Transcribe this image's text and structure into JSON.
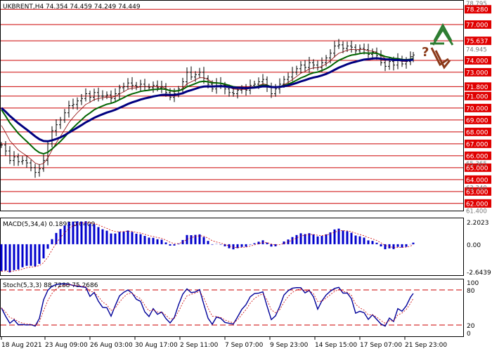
{
  "chart_data": {
    "type": "candlestick",
    "header": "UKBRENT,H4  74.354 74.459 74.249 74.449",
    "price_panel": {
      "ylim": [
        61.4,
        79.0
      ],
      "resistance_levels": [
        78.28,
        77.0,
        75.637,
        74.0,
        73.0,
        71.8,
        71.0,
        70.0,
        69.0,
        68.0,
        67.0,
        66.0,
        65.0,
        64.0,
        63.0,
        62.0
      ],
      "red_labels": [
        "78.280",
        "77.000",
        "75.637",
        "74.000",
        "73.000",
        "71.800",
        "71.000",
        "70.000",
        "69.000",
        "68.000",
        "67.000",
        "66.000",
        "65.000",
        "64.000",
        "63.000",
        "62.000"
      ],
      "gray_labels": [
        "78.795",
        "74.945",
        "65.365",
        "63.340",
        "61.400"
      ],
      "close_series": [
        {
          "x": 0,
          "y": 66.9
        },
        {
          "x": 6,
          "y": 66.4
        },
        {
          "x": 12,
          "y": 65.6
        },
        {
          "x": 18,
          "y": 65.9
        },
        {
          "x": 24,
          "y": 65.5
        },
        {
          "x": 30,
          "y": 65.6
        },
        {
          "x": 36,
          "y": 65.4
        },
        {
          "x": 42,
          "y": 65.0
        },
        {
          "x": 48,
          "y": 64.6
        },
        {
          "x": 54,
          "y": 64.9
        },
        {
          "x": 60,
          "y": 65.6
        },
        {
          "x": 66,
          "y": 67.0
        },
        {
          "x": 72,
          "y": 68.1
        },
        {
          "x": 78,
          "y": 68.6
        },
        {
          "x": 84,
          "y": 69.0
        },
        {
          "x": 90,
          "y": 69.6
        },
        {
          "x": 96,
          "y": 70.2
        },
        {
          "x": 102,
          "y": 70.3
        },
        {
          "x": 108,
          "y": 70.6
        },
        {
          "x": 114,
          "y": 70.8
        },
        {
          "x": 120,
          "y": 71.2
        },
        {
          "x": 126,
          "y": 70.9
        },
        {
          "x": 132,
          "y": 71.3
        },
        {
          "x": 138,
          "y": 71.0
        },
        {
          "x": 144,
          "y": 71.0
        },
        {
          "x": 150,
          "y": 71.1
        },
        {
          "x": 156,
          "y": 70.8
        },
        {
          "x": 162,
          "y": 71.2
        },
        {
          "x": 168,
          "y": 71.7
        },
        {
          "x": 174,
          "y": 71.8
        },
        {
          "x": 180,
          "y": 72.1
        },
        {
          "x": 186,
          "y": 71.9
        },
        {
          "x": 192,
          "y": 71.8
        },
        {
          "x": 198,
          "y": 72.0
        },
        {
          "x": 204,
          "y": 71.8
        },
        {
          "x": 210,
          "y": 71.7
        },
        {
          "x": 216,
          "y": 71.9
        },
        {
          "x": 222,
          "y": 71.7
        },
        {
          "x": 228,
          "y": 71.8
        },
        {
          "x": 234,
          "y": 71.3
        },
        {
          "x": 240,
          "y": 70.9
        },
        {
          "x": 246,
          "y": 71.2
        },
        {
          "x": 252,
          "y": 71.6
        },
        {
          "x": 258,
          "y": 72.2
        },
        {
          "x": 264,
          "y": 73.0
        },
        {
          "x": 270,
          "y": 72.6
        },
        {
          "x": 276,
          "y": 72.8
        },
        {
          "x": 282,
          "y": 73.0
        },
        {
          "x": 288,
          "y": 72.5
        },
        {
          "x": 294,
          "y": 72.0
        },
        {
          "x": 300,
          "y": 71.6
        },
        {
          "x": 306,
          "y": 72.1
        },
        {
          "x": 312,
          "y": 71.9
        },
        {
          "x": 318,
          "y": 71.6
        },
        {
          "x": 324,
          "y": 71.3
        },
        {
          "x": 330,
          "y": 71.2
        },
        {
          "x": 336,
          "y": 71.5
        },
        {
          "x": 342,
          "y": 71.6
        },
        {
          "x": 348,
          "y": 71.5
        },
        {
          "x": 354,
          "y": 71.9
        },
        {
          "x": 360,
          "y": 72.0
        },
        {
          "x": 366,
          "y": 72.2
        },
        {
          "x": 372,
          "y": 72.4
        },
        {
          "x": 378,
          "y": 71.8
        },
        {
          "x": 384,
          "y": 71.2
        },
        {
          "x": 390,
          "y": 71.6
        },
        {
          "x": 396,
          "y": 72.0
        },
        {
          "x": 402,
          "y": 72.4
        },
        {
          "x": 408,
          "y": 72.6
        },
        {
          "x": 414,
          "y": 73.0
        },
        {
          "x": 420,
          "y": 73.3
        },
        {
          "x": 426,
          "y": 73.6
        },
        {
          "x": 432,
          "y": 73.4
        },
        {
          "x": 438,
          "y": 73.8
        },
        {
          "x": 444,
          "y": 73.6
        },
        {
          "x": 450,
          "y": 73.4
        },
        {
          "x": 456,
          "y": 73.8
        },
        {
          "x": 462,
          "y": 74.2
        },
        {
          "x": 468,
          "y": 74.6
        },
        {
          "x": 474,
          "y": 75.2
        },
        {
          "x": 480,
          "y": 75.3
        },
        {
          "x": 486,
          "y": 75.0
        },
        {
          "x": 492,
          "y": 75.2
        },
        {
          "x": 498,
          "y": 75.1
        },
        {
          "x": 504,
          "y": 74.8
        },
        {
          "x": 510,
          "y": 75.0
        },
        {
          "x": 516,
          "y": 74.9
        },
        {
          "x": 522,
          "y": 74.5
        },
        {
          "x": 528,
          "y": 74.7
        },
        {
          "x": 534,
          "y": 74.4
        },
        {
          "x": 540,
          "y": 73.8
        },
        {
          "x": 546,
          "y": 73.5
        },
        {
          "x": 552,
          "y": 73.9
        },
        {
          "x": 558,
          "y": 73.6
        },
        {
          "x": 564,
          "y": 74.1
        },
        {
          "x": 570,
          "y": 73.7
        },
        {
          "x": 576,
          "y": 73.9
        },
        {
          "x": 582,
          "y": 74.3
        },
        {
          "x": 586,
          "y": 74.45
        }
      ],
      "ma_fast_color": "#8b0000",
      "ma_mid_color": "#006400",
      "ma_slow_color": "#000080"
    },
    "macd_panel": {
      "label": "MACD(5,34,4) 0.1893 0.0409",
      "ylim": [
        -2.6439,
        2.2023
      ],
      "tick_labels": [
        "2.2023",
        "0.00",
        "-2.6439"
      ]
    },
    "stoch_panel": {
      "label": "Stoch(5,3,3) 88.7288 75.2686",
      "ylim": [
        0,
        100
      ],
      "levels": [
        80,
        20
      ],
      "tick_labels": [
        "100",
        "80",
        "20",
        "0"
      ]
    },
    "x_tick_labels": [
      "18 Aug 2021",
      "23 Aug 09:00",
      "26 Aug 03:00",
      "30 Aug 17:00",
      "2 Sep 11:00",
      "7 Sep 07:00",
      "9 Sep 23:00",
      "14 Sep 15:00",
      "17 Sep 07:00",
      "21 Sep 23:00"
    ],
    "arrows": {
      "up_color": "#2e7d32",
      "down_color": "#8b3a1a",
      "question_mark": "?"
    }
  }
}
